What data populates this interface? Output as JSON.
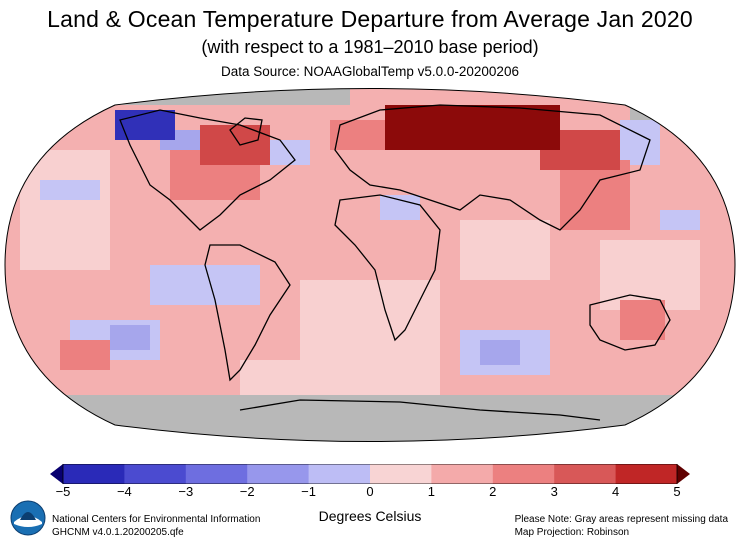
{
  "title": "Land & Ocean Temperature Departure from Average Jan 2020",
  "subtitle": "(with respect to a 1981–2010 base period)",
  "source": "Data Source: NOAAGlobalTemp v5.0.0-20200206",
  "colorbar": {
    "ticks": [
      "−5",
      "−4",
      "−3",
      "−2",
      "−1",
      "0",
      "1",
      "2",
      "3",
      "4",
      "5"
    ],
    "colors": [
      "#2a2ab8",
      "#4b4bd0",
      "#6e6ee0",
      "#9797ec",
      "#bdbdf5",
      "#f8d4d4",
      "#f4aaaa",
      "#ec8080",
      "#d85858",
      "#c02626"
    ],
    "end_low": "#080070",
    "end_high": "#600000",
    "units": "Degrees Celsius"
  },
  "colors": {
    "missing": "#b8b8b8",
    "ocean_default": "#f4b0b0"
  },
  "footer": {
    "org": "National Centers for Environmental Information",
    "dataset": "GHCNM v4.0.1.20200205.qfe",
    "note": "Please Note: Gray areas represent missing data",
    "projection": "Map Projection: Robinson"
  },
  "logo_icon": "noaa-logo"
}
